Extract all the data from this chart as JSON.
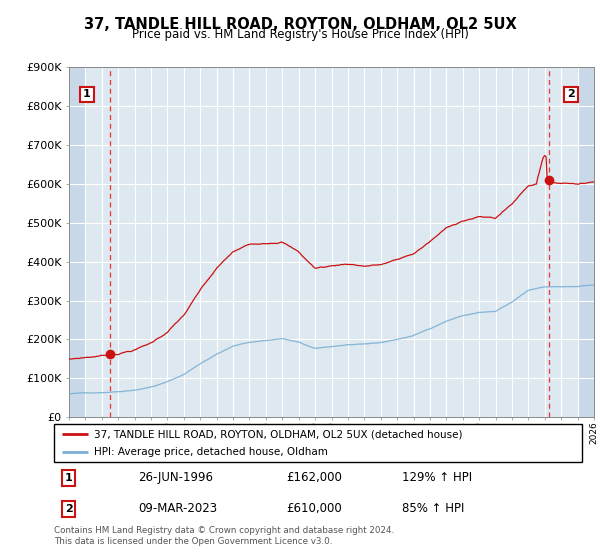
{
  "title": "37, TANDLE HILL ROAD, ROYTON, OLDHAM, OL2 5UX",
  "subtitle": "Price paid vs. HM Land Registry's House Price Index (HPI)",
  "legend_line1": "37, TANDLE HILL ROAD, ROYTON, OLDHAM, OL2 5UX (detached house)",
  "legend_line2": "HPI: Average price, detached house, Oldham",
  "transaction1_date": "26-JUN-1996",
  "transaction1_price": 162000,
  "transaction1_hpi": "129% ↑ HPI",
  "transaction2_date": "09-MAR-2023",
  "transaction2_price": 610000,
  "transaction2_hpi": "85% ↑ HPI",
  "footnote": "Contains HM Land Registry data © Crown copyright and database right 2024.\nThis data is licensed under the Open Government Licence v3.0.",
  "hpi_color": "#7bafd4",
  "price_color": "#cc1111",
  "vline_color": "#ee3333",
  "plot_bg_color": "#dde8f0",
  "hatch_bg_color": "#c8d8e8",
  "ylim": [
    0,
    900000
  ],
  "xmin": 1994,
  "xmax": 2026
}
